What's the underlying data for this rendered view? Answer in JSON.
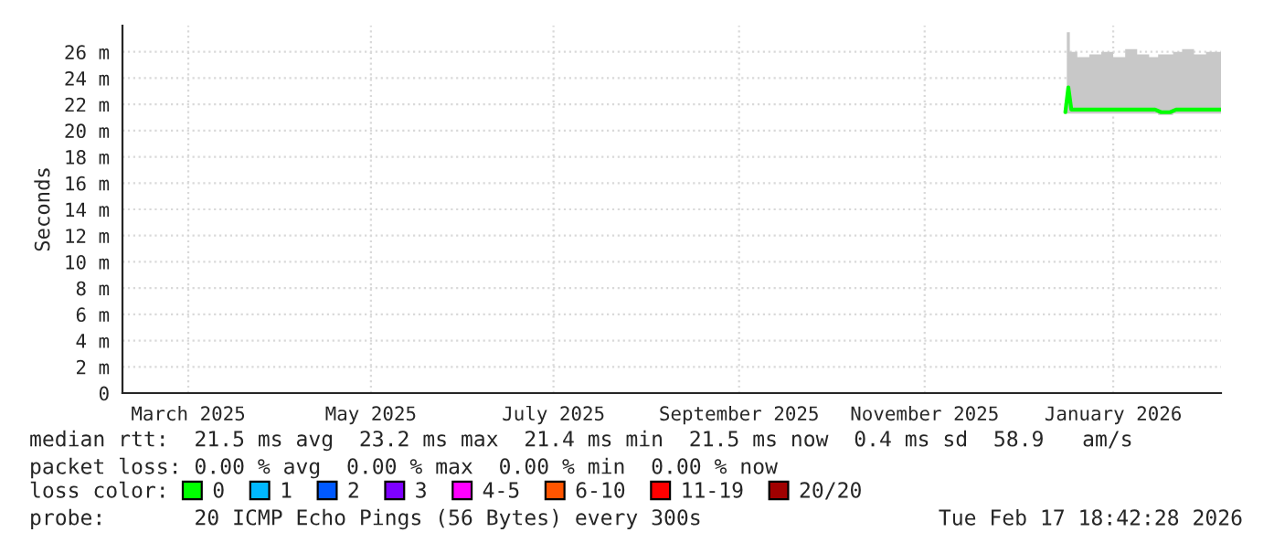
{
  "chart_data": {
    "type": "line",
    "ylabel": "Seconds",
    "x": [
      "2025-12-27",
      "2025-12-28",
      "2025-12-29",
      "2026-01-02",
      "2026-01-06",
      "2026-01-10",
      "2026-01-14",
      "2026-01-18",
      "2026-01-22",
      "2026-01-26",
      "2026-01-28",
      "2026-01-31",
      "2026-02-02",
      "2026-02-06",
      "2026-02-10",
      "2026-02-14",
      "2026-02-17"
    ],
    "series": [
      {
        "name": "0",
        "color": "#00ff00",
        "values": [
          21.4,
          23.3,
          21.6,
          21.6,
          21.6,
          21.6,
          21.6,
          21.6,
          21.6,
          21.6,
          21.4,
          21.4,
          21.6,
          21.6,
          21.6,
          21.6,
          21.6
        ],
        "lower": [
          21.3,
          21.3,
          21.3,
          21.3,
          21.3,
          21.3,
          21.3,
          21.3,
          21.3,
          21.3,
          21.2,
          21.2,
          21.3,
          21.3,
          21.3,
          21.3,
          21.3
        ],
        "upper": [
          21.8,
          27.5,
          26.0,
          25.6,
          25.8,
          26.0,
          25.6,
          26.2,
          25.8,
          25.6,
          25.8,
          25.8,
          26.0,
          26.2,
          25.8,
          26.0,
          26.0
        ]
      },
      {
        "name": "1",
        "color": "#00b8ff",
        "values": [
          null,
          null,
          null,
          null,
          null,
          null,
          null,
          null,
          null,
          null,
          null,
          null,
          null,
          null,
          null,
          null,
          null
        ]
      },
      {
        "name": "2",
        "color": "#0059ff",
        "values": [
          null,
          null,
          null,
          null,
          null,
          null,
          null,
          null,
          null,
          null,
          null,
          null,
          null,
          null,
          null,
          null,
          null
        ]
      },
      {
        "name": "3",
        "color": "#7e00ff",
        "values": [
          null,
          null,
          null,
          null,
          null,
          null,
          null,
          null,
          null,
          null,
          null,
          null,
          null,
          null,
          null,
          null,
          null
        ]
      },
      {
        "name": "4-5",
        "color": "#ff00ff",
        "values": [
          null,
          null,
          null,
          null,
          null,
          null,
          null,
          null,
          null,
          null,
          null,
          null,
          null,
          null,
          null,
          null,
          null
        ]
      },
      {
        "name": "6-10",
        "color": "#ff5500",
        "values": [
          null,
          null,
          null,
          null,
          null,
          null,
          null,
          null,
          null,
          null,
          null,
          null,
          null,
          null,
          null,
          null,
          null
        ]
      },
      {
        "name": "11-19",
        "color": "#ff0000",
        "values": [
          null,
          null,
          null,
          null,
          null,
          null,
          null,
          null,
          null,
          null,
          null,
          null,
          null,
          null,
          null,
          null,
          null
        ]
      },
      {
        "name": "20/20",
        "color": "#a10000",
        "values": [
          null,
          null,
          null,
          null,
          null,
          null,
          null,
          null,
          null,
          null,
          null,
          null,
          null,
          null,
          null,
          null,
          null
        ]
      }
    ],
    "legend_title": "loss color:",
    "legend": "bottom",
    "xlim": [
      "2025-02-15",
      "2026-02-17"
    ],
    "xticks": [
      {
        "value": "2025-03-09",
        "label": "March 2025"
      },
      {
        "value": "2025-05-09",
        "label": "May 2025"
      },
      {
        "value": "2025-07-09",
        "label": "July 2025"
      },
      {
        "value": "2025-09-09",
        "label": "September 2025"
      },
      {
        "value": "2025-11-10",
        "label": "November 2025"
      },
      {
        "value": "2026-01-12",
        "label": "January 2026"
      }
    ],
    "ylim": [
      0,
      28
    ],
    "yticks": [
      0,
      {
        "value": 2,
        "label": "2 m"
      },
      {
        "value": 4,
        "label": "4 m"
      },
      {
        "value": 6,
        "label": "6 m"
      },
      {
        "value": 8,
        "label": "8 m"
      },
      {
        "value": 10,
        "label": "10 m"
      },
      {
        "value": 12,
        "label": "12 m"
      },
      {
        "value": 14,
        "label": "14 m"
      },
      {
        "value": 16,
        "label": "16 m"
      },
      {
        "value": 18,
        "label": "18 m"
      },
      {
        "value": 20,
        "label": "20 m"
      },
      {
        "value": 22,
        "label": "22 m"
      },
      {
        "value": 24,
        "label": "24 m"
      },
      {
        "value": 26,
        "label": "26 m"
      }
    ],
    "grid": true,
    "line_style": "solid",
    "annotations": [
      "median rtt:  21.5 ms avg  23.2 ms max  21.4 ms min  21.5 ms now  0.4 ms sd  58.9   am/s",
      "packet loss: 0.00 % avg  0.00 % max  0.00 % min  0.00 % now",
      "probe:       20 ICMP Echo Pings (56 Bytes) every 300s",
      "Tue Feb 17 18:42:28 2026"
    ]
  }
}
